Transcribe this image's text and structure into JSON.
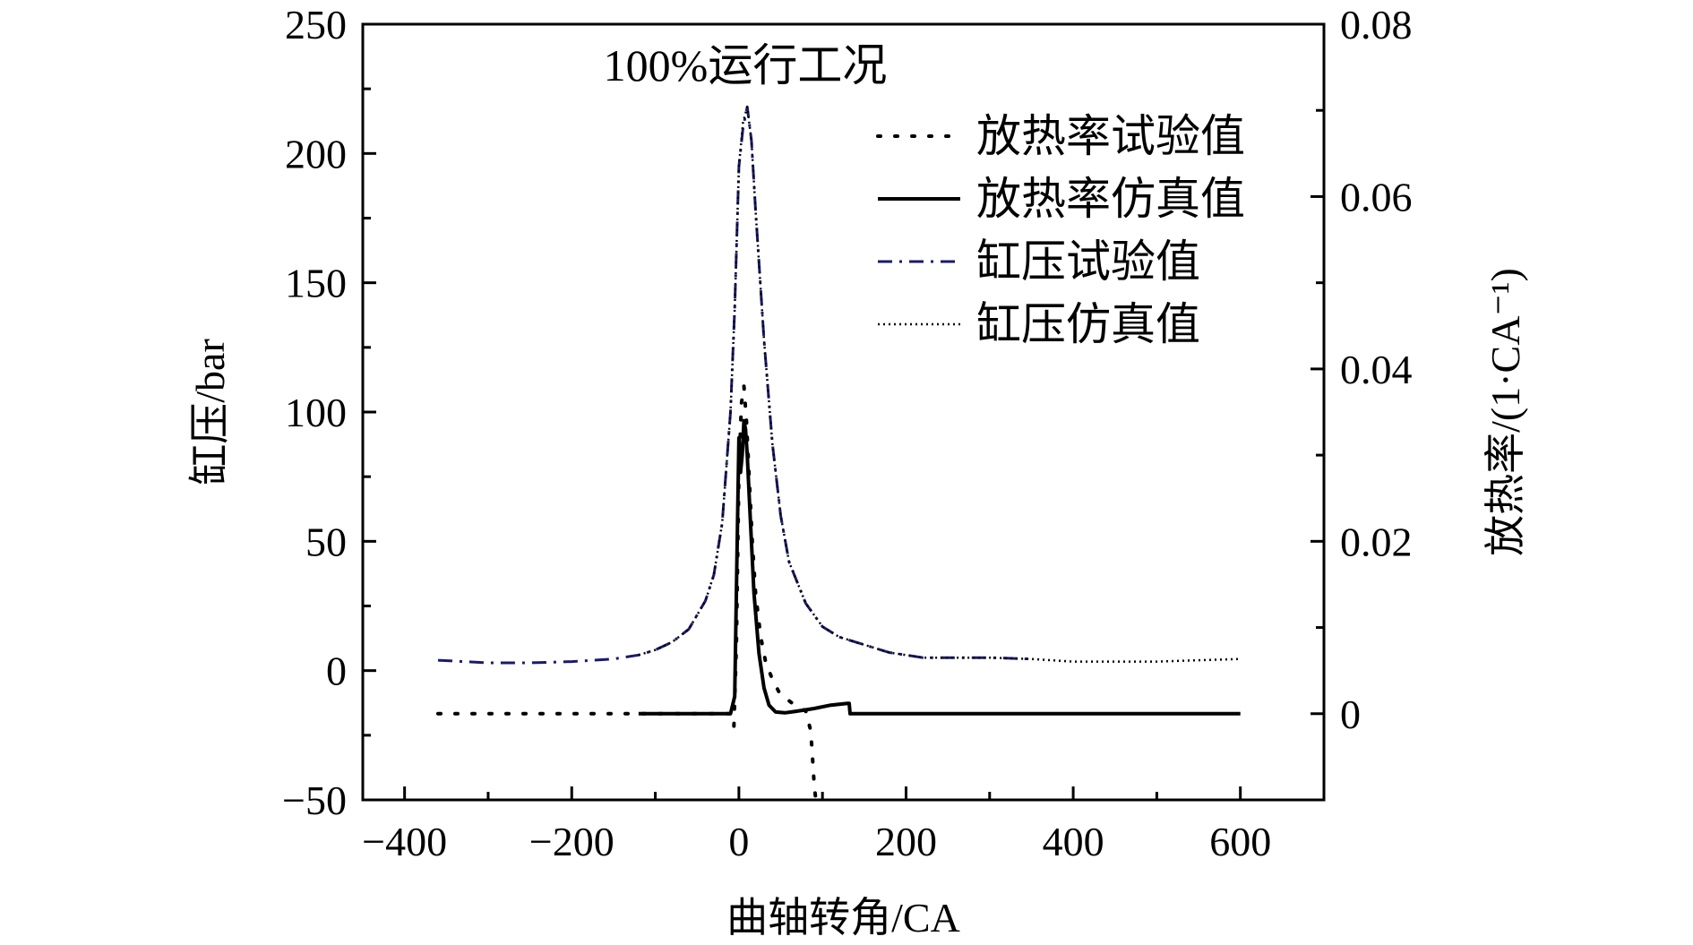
{
  "chart_data": {
    "type": "line",
    "title": "100%运行工况",
    "xlabel": "曲轴转角/CA",
    "ylabel": "缸压/bar",
    "y2label": "放热率/(1·CA⁻¹)",
    "xlim": [
      -450,
      700
    ],
    "ylim": [
      -50,
      250
    ],
    "y2lim": [
      -0.01,
      0.08
    ],
    "xticks": [
      -400,
      -200,
      0,
      200,
      400,
      600
    ],
    "xtick_labels": [
      "−400",
      "−200",
      "0",
      "200",
      "400",
      "600"
    ],
    "yticks": [
      -50,
      0,
      50,
      100,
      150,
      200,
      250
    ],
    "ytick_labels": [
      "−50",
      "0",
      "50",
      "100",
      "150",
      "200",
      "250"
    ],
    "y2ticks": [
      0,
      0.02,
      0.04,
      0.06,
      0.08
    ],
    "y2tick_labels": [
      "0",
      "0.02",
      "0.04",
      "0.06",
      "0.08"
    ],
    "legend_position": "top-right",
    "series": [
      {
        "name": "放热率试验值",
        "axis": "right",
        "style": "dotted",
        "color": "#000000",
        "x": [
          -360,
          -120,
          -10,
          -6,
          -3,
          0,
          3,
          6,
          9,
          12,
          16,
          20,
          26,
          32,
          40,
          48,
          56,
          64,
          72,
          80,
          86,
          88,
          90,
          92
        ],
        "y": [
          0,
          0,
          0,
          -0.0015,
          0.008,
          0.028,
          0.036,
          0.038,
          0.034,
          0.028,
          0.02,
          0.014,
          0.009,
          0.006,
          0.004,
          0.0025,
          0.0018,
          0.0012,
          0.0008,
          0.0003,
          -0.002,
          -0.005,
          -0.008,
          -0.011
        ]
      },
      {
        "name": "放热率仿真值",
        "axis": "right",
        "style": "solid",
        "color": "#000000",
        "x": [
          -120,
          -10,
          -5,
          -2,
          0,
          2,
          4,
          6,
          8,
          10,
          14,
          18,
          24,
          30,
          36,
          44,
          55,
          70,
          90,
          110,
          130,
          132,
          133,
          600
        ],
        "y": [
          0,
          0,
          0.002,
          0.02,
          0.032,
          0.028,
          0.03,
          0.034,
          0.033,
          0.03,
          0.022,
          0.014,
          0.007,
          0.003,
          0.001,
          0.0002,
          0.0001,
          0.0003,
          0.0006,
          0.001,
          0.0012,
          0.0012,
          0,
          0
        ]
      },
      {
        "name": "缸压试验值",
        "axis": "left",
        "style": "dash-dot",
        "color": "#1a1a6e",
        "x": [
          -360,
          -300,
          -250,
          -200,
          -150,
          -120,
          -100,
          -80,
          -60,
          -40,
          -30,
          -20,
          -10,
          -5,
          0,
          5,
          10,
          15,
          20,
          30,
          40,
          50,
          60,
          80,
          100,
          120,
          140,
          160,
          180,
          200,
          220,
          250,
          300,
          350
        ],
        "y": [
          4,
          3,
          3,
          3.5,
          4.5,
          6,
          8,
          11,
          16,
          27,
          37,
          57,
          100,
          140,
          195,
          210,
          218,
          205,
          178,
          128,
          88,
          60,
          42,
          26,
          17,
          13,
          11,
          9,
          7,
          6,
          5,
          5,
          5,
          4.5
        ]
      },
      {
        "name": "缸压仿真值",
        "axis": "left",
        "style": "fine-dotted",
        "color": "#000000",
        "x": [
          -120,
          -100,
          -80,
          -60,
          -40,
          -30,
          -20,
          -10,
          -5,
          0,
          5,
          10,
          15,
          20,
          30,
          40,
          50,
          60,
          80,
          100,
          120,
          140,
          160,
          180,
          200,
          220,
          250,
          300,
          350,
          400,
          450,
          500,
          550,
          600
        ],
        "y": [
          6,
          8,
          11,
          16,
          27,
          37,
          57,
          100,
          140,
          195,
          212,
          218,
          205,
          178,
          128,
          88,
          60,
          42,
          26,
          17,
          13,
          11,
          9,
          7,
          6,
          5,
          5,
          5,
          4.5,
          3.5,
          3.5,
          3.5,
          4,
          4.5
        ]
      }
    ]
  }
}
